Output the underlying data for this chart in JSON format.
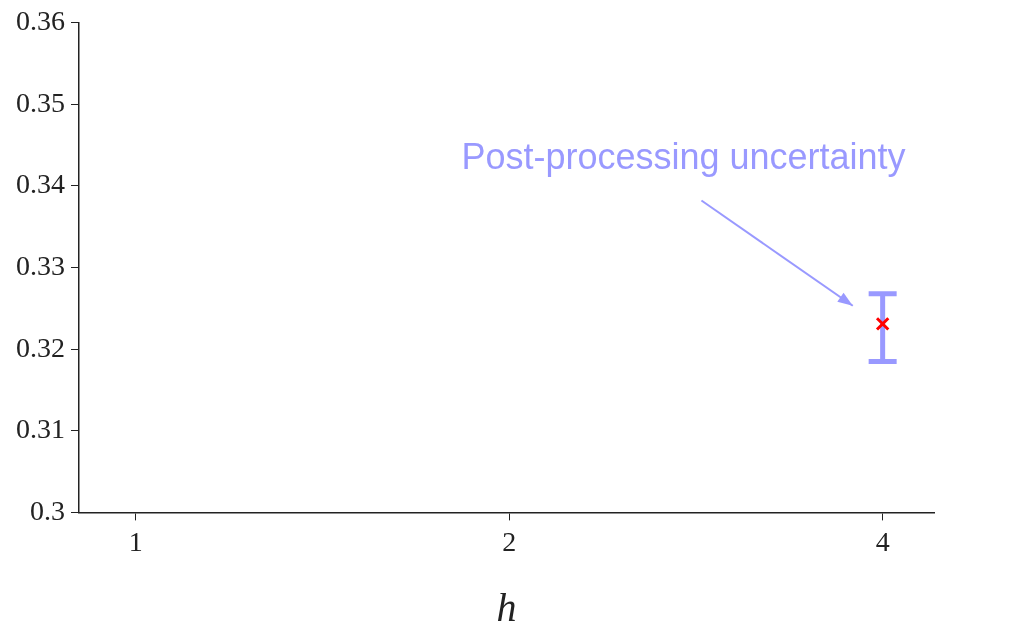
{
  "chart_data": {
    "type": "scatter",
    "xlabel": "h",
    "x": [
      4
    ],
    "series": [
      {
        "color": "#ff0000",
        "values": [
          0.3231
        ],
        "errors": [
          [
            0.3185,
            0.3268
          ]
        ]
      }
    ],
    "xlim": [
      0.9,
      4.4
    ],
    "xticks": [
      1,
      2,
      4
    ],
    "log": "x",
    "ylim": [
      0.3,
      0.36
    ],
    "yticks": [
      0.3,
      0.31,
      0.32,
      0.33,
      0.34,
      0.35,
      0.36
    ],
    "marker": "cross",
    "grid": false,
    "legend": false,
    "annotations": [
      "Post-processing uncertainty"
    ]
  }
}
